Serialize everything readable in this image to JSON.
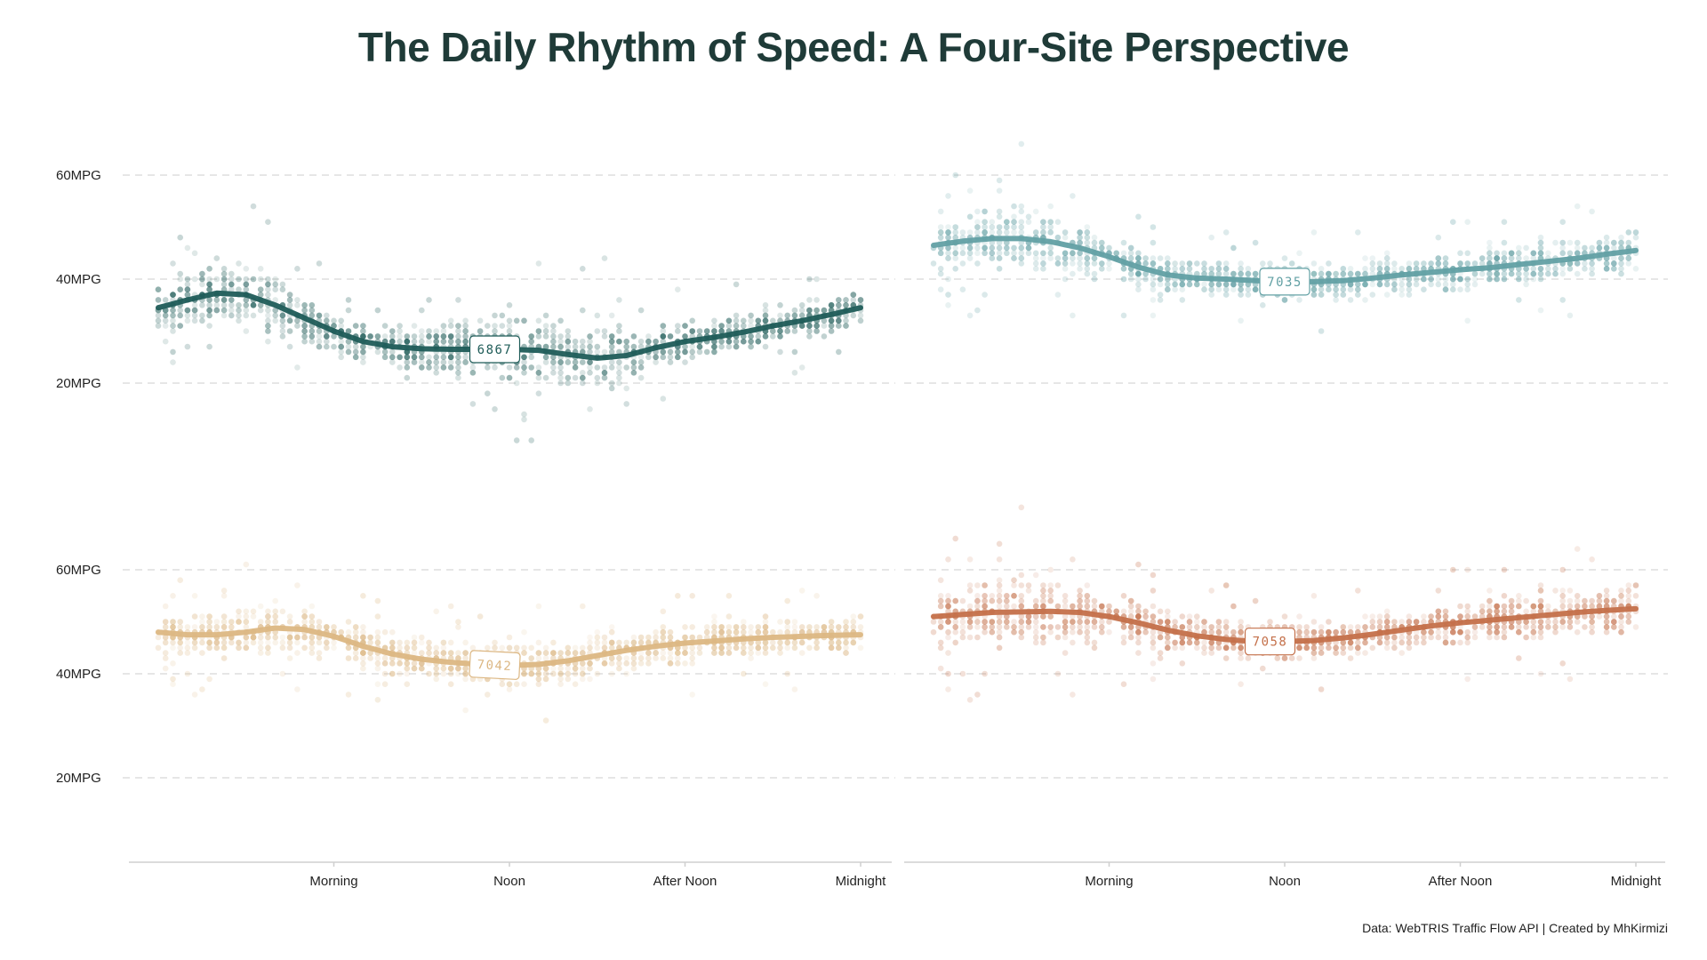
{
  "title": "The Daily Rhythm of Speed: A Four-Site Perspective",
  "caption": "Data: WebTRIS Traffic Flow API | Created by MhKirmizi",
  "chart_data": {
    "type": "scatter",
    "x_unit": "hour of day",
    "xlim": [
      0,
      24
    ],
    "ylim": [
      8,
      68
    ],
    "y_ticks": [
      {
        "value": 20,
        "label": "20MPG"
      },
      {
        "value": 40,
        "label": "40MPG"
      },
      {
        "value": 60,
        "label": "60MPG"
      }
    ],
    "x_ticks": [
      {
        "value": 6,
        "label": "Morning"
      },
      {
        "value": 12,
        "label": "Noon"
      },
      {
        "value": 18,
        "label": "After Noon"
      },
      {
        "value": 24,
        "label": "Midnight"
      }
    ],
    "grid": "horizontal dashed",
    "panels": [
      {
        "site": "6867",
        "color": "#1f5c58",
        "label_hour": 11.5,
        "trend": [
          [
            0,
            34.5
          ],
          [
            1,
            36
          ],
          [
            2,
            37.3
          ],
          [
            3,
            37
          ],
          [
            4,
            35
          ],
          [
            5,
            32.5
          ],
          [
            6,
            30
          ],
          [
            7,
            28
          ],
          [
            8,
            27
          ],
          [
            9,
            26.6
          ],
          [
            10,
            26.5
          ],
          [
            11,
            26.5
          ],
          [
            12,
            26.5
          ],
          [
            13,
            26.3
          ],
          [
            14,
            25.5
          ],
          [
            15,
            24.8
          ],
          [
            16,
            25.3
          ],
          [
            17,
            26.8
          ],
          [
            18,
            28
          ],
          [
            19,
            28.8
          ],
          [
            20,
            29.8
          ],
          [
            21,
            31
          ],
          [
            22,
            32
          ],
          [
            23,
            33.2
          ],
          [
            24,
            34.5
          ]
        ],
        "spread": [
          [
            0,
            3
          ],
          [
            3,
            5
          ],
          [
            5,
            3.5
          ],
          [
            7,
            2.5
          ],
          [
            9,
            3.5
          ],
          [
            12,
            4.5
          ],
          [
            15,
            5
          ],
          [
            17,
            3
          ],
          [
            20,
            2.5
          ],
          [
            24,
            3
          ]
        ]
      },
      {
        "site": "7035",
        "color": "#62a0a4",
        "label_hour": 12,
        "trend": [
          [
            0,
            46.5
          ],
          [
            1,
            47.3
          ],
          [
            2,
            47.8
          ],
          [
            3,
            47.8
          ],
          [
            4,
            47.2
          ],
          [
            5,
            46
          ],
          [
            6,
            44.3
          ],
          [
            7,
            42.3
          ],
          [
            8,
            40.8
          ],
          [
            9,
            40.2
          ],
          [
            10,
            40
          ],
          [
            11,
            39.7
          ],
          [
            12,
            39.5
          ],
          [
            13,
            39.5
          ],
          [
            14,
            39.7
          ],
          [
            15,
            40.2
          ],
          [
            16,
            40.8
          ],
          [
            17,
            41.3
          ],
          [
            18,
            41.8
          ],
          [
            19,
            42.2
          ],
          [
            20,
            42.8
          ],
          [
            21,
            43.4
          ],
          [
            22,
            44
          ],
          [
            23,
            44.8
          ],
          [
            24,
            45.5
          ]
        ],
        "spread": [
          [
            0,
            3.5
          ],
          [
            3,
            5
          ],
          [
            5,
            3.5
          ],
          [
            8,
            2.5
          ],
          [
            12,
            2.5
          ],
          [
            16,
            2.5
          ],
          [
            20,
            2.5
          ],
          [
            24,
            3.5
          ]
        ]
      },
      {
        "site": "7042",
        "color": "#dcb783",
        "label_hour": 11.5,
        "trend": [
          [
            0,
            48
          ],
          [
            1,
            47.5
          ],
          [
            2,
            47.5
          ],
          [
            3,
            48
          ],
          [
            4,
            48.8
          ],
          [
            5,
            48.5
          ],
          [
            6,
            47.2
          ],
          [
            7,
            45.3
          ],
          [
            8,
            43.8
          ],
          [
            9,
            42.8
          ],
          [
            10,
            42.2
          ],
          [
            11,
            41.8
          ],
          [
            12,
            41.6
          ],
          [
            13,
            41.8
          ],
          [
            14,
            42.5
          ],
          [
            15,
            43.5
          ],
          [
            16,
            44.5
          ],
          [
            17,
            45.3
          ],
          [
            18,
            45.9
          ],
          [
            19,
            46.3
          ],
          [
            20,
            46.7
          ],
          [
            21,
            47
          ],
          [
            22,
            47.2
          ],
          [
            23,
            47.4
          ],
          [
            24,
            47.5
          ]
        ],
        "spread": [
          [
            0,
            3
          ],
          [
            3,
            3.5
          ],
          [
            6,
            3
          ],
          [
            9,
            3
          ],
          [
            12,
            3
          ],
          [
            15,
            3
          ],
          [
            18,
            2.5
          ],
          [
            21,
            2.5
          ],
          [
            24,
            3
          ]
        ]
      },
      {
        "site": "7058",
        "color": "#c4704a",
        "label_hour": 11.5,
        "trend": [
          [
            0,
            51
          ],
          [
            1,
            51.4
          ],
          [
            2,
            51.8
          ],
          [
            3,
            51.9
          ],
          [
            4,
            52
          ],
          [
            5,
            51.8
          ],
          [
            6,
            51
          ],
          [
            7,
            49.8
          ],
          [
            8,
            48.4
          ],
          [
            9,
            47.3
          ],
          [
            10,
            46.6
          ],
          [
            11,
            46.2
          ],
          [
            12,
            46.2
          ],
          [
            13,
            46.4
          ],
          [
            14,
            46.9
          ],
          [
            15,
            47.6
          ],
          [
            16,
            48.4
          ],
          [
            17,
            49.2
          ],
          [
            18,
            49.8
          ],
          [
            19,
            50.3
          ],
          [
            20,
            50.8
          ],
          [
            21,
            51.3
          ],
          [
            22,
            51.8
          ],
          [
            23,
            52.2
          ],
          [
            24,
            52.5
          ]
        ],
        "spread": [
          [
            0,
            4
          ],
          [
            3,
            5.5
          ],
          [
            5,
            4
          ],
          [
            8,
            3
          ],
          [
            12,
            2.5
          ],
          [
            16,
            2.5
          ],
          [
            20,
            3
          ],
          [
            24,
            4
          ]
        ]
      }
    ]
  }
}
